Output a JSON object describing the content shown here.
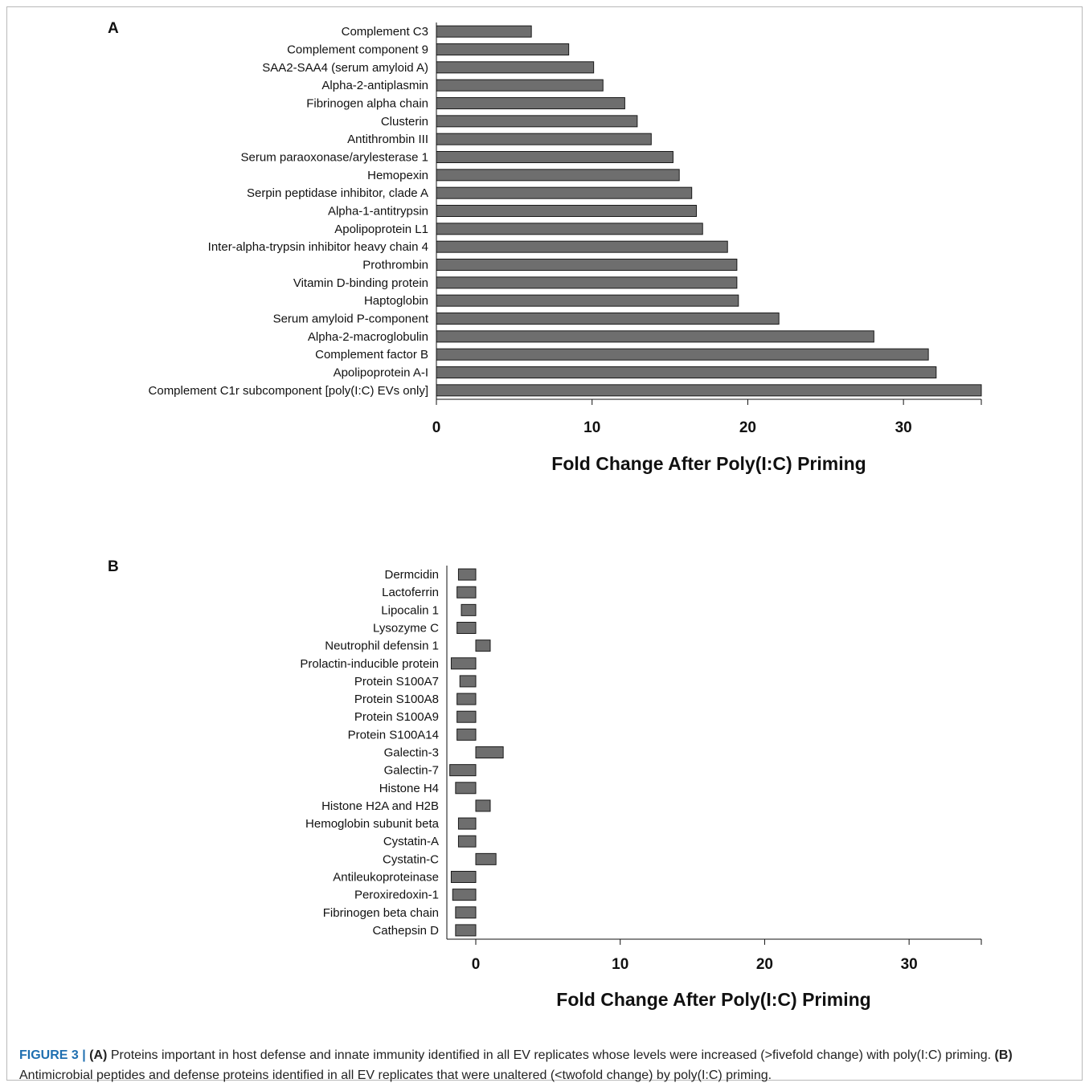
{
  "chart_data": [
    {
      "type": "bar",
      "orientation": "horizontal",
      "panel": "A",
      "categories": [
        "Complement C3",
        "Complement component 9",
        "SAA2-SAA4 (serum amyloid A)",
        "Alpha-2-antiplasmin",
        "Fibrinogen alpha chain",
        "Clusterin",
        "Antithrombin III",
        "Serum paraoxonase/arylesterase 1",
        "Hemopexin",
        "Serpin peptidase inhibitor, clade A",
        "Alpha-1-antitrypsin",
        "Apolipoprotein L1",
        "Inter-alpha-trypsin inhibitor heavy chain 4",
        "Prothrombin",
        "Vitamin D-binding protein",
        "Haptoglobin",
        "Serum amyloid P-component",
        "Alpha-2-macroglobulin",
        "Complement factor B",
        "Apolipoprotein A-I",
        "Complement C1r subcomponent [poly(I:C) EVs only]"
      ],
      "values": [
        6.1,
        8.5,
        10.1,
        10.7,
        12.1,
        12.9,
        13.8,
        15.2,
        15.6,
        16.4,
        16.7,
        17.1,
        18.7,
        19.3,
        19.3,
        19.4,
        22.0,
        28.1,
        31.6,
        32.1,
        35.0
      ],
      "xlabel": "Fold Change After Poly(I:C) Priming",
      "xlim": [
        0,
        35
      ],
      "xticks": [
        0,
        10,
        20,
        30
      ],
      "bar_color": "#6e6e6e"
    },
    {
      "type": "bar",
      "orientation": "horizontal",
      "panel": "B",
      "categories": [
        "Dermcidin",
        "Lactoferrin",
        "Lipocalin 1",
        "Lysozyme C",
        "Neutrophil defensin 1",
        "Prolactin-inducible protein",
        "Protein S100A7",
        "Protein S100A8",
        "Protein S100A9",
        "Protein S100A14",
        "Galectin-3",
        "Galectin-7",
        "Histone H4",
        "Histone H2A and H2B",
        "Hemoglobin subunit beta",
        "Cystatin-A",
        "Cystatin-C",
        "Antileukoproteinase",
        "Peroxiredoxin-1",
        "Fibrinogen beta chain",
        "Cathepsin D"
      ],
      "values": [
        -1.2,
        -1.3,
        -1.0,
        -1.3,
        1.0,
        -1.7,
        -1.1,
        -1.3,
        -1.3,
        -1.3,
        1.9,
        -1.8,
        -1.4,
        1.0,
        -1.2,
        -1.2,
        1.4,
        -1.7,
        -1.6,
        -1.4,
        -1.4
      ],
      "xlabel": "Fold Change After Poly(I:C) Priming",
      "xlim": [
        -2,
        35
      ],
      "xticks": [
        0,
        10,
        20,
        30
      ],
      "bar_color": "#6e6e6e"
    }
  ],
  "caption": {
    "figure_label": "FIGURE 3 |",
    "part_a_label": "(A)",
    "part_a_text": " Proteins important in host defense and innate immunity identified in all EV replicates whose levels were increased (>fivefold change) with poly(I:C) priming. ",
    "part_b_label": "(B)",
    "part_b_text": " Antimicrobial peptides and defense proteins identified in all EV replicates that were unaltered (<twofold change) by poly(I:C) priming."
  }
}
